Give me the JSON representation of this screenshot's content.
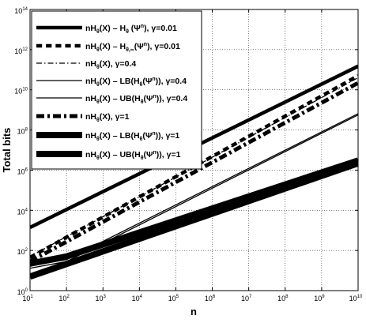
{
  "chart_data": {
    "type": "line",
    "xlabel": "n",
    "ylabel": "Total bits",
    "xscale": "log",
    "yscale": "log",
    "xlim": [
      10,
      10000000000
    ],
    "ylim": [
      1,
      100000000000000
    ],
    "x_ticks": [
      {
        "value": 10,
        "label": "10",
        "exp": "1"
      },
      {
        "value": 100,
        "label": "10",
        "exp": "2"
      },
      {
        "value": 1000,
        "label": "10",
        "exp": "3"
      },
      {
        "value": 10000,
        "label": "10",
        "exp": "4"
      },
      {
        "value": 100000,
        "label": "10",
        "exp": "5"
      },
      {
        "value": 1000000,
        "label": "10",
        "exp": "6"
      },
      {
        "value": 10000000,
        "label": "10",
        "exp": "7"
      },
      {
        "value": 100000000,
        "label": "10",
        "exp": "8"
      },
      {
        "value": 1000000000,
        "label": "10",
        "exp": "9"
      },
      {
        "value": 10000000000,
        "label": "10",
        "exp": "10"
      }
    ],
    "y_ticks": [
      {
        "value": 1,
        "label": "10",
        "exp": "0"
      },
      {
        "value": 100,
        "label": "10",
        "exp": "2"
      },
      {
        "value": 10000,
        "label": "10",
        "exp": "4"
      },
      {
        "value": 1000000,
        "label": "10",
        "exp": "6"
      },
      {
        "value": 100000000,
        "label": "10",
        "exp": "8"
      },
      {
        "value": 10000000000,
        "label": "10",
        "exp": "10"
      },
      {
        "value": 1000000000000,
        "label": "10",
        "exp": "12"
      },
      {
        "value": 100000000000000,
        "label": "10",
        "exp": "14"
      }
    ],
    "legend": {
      "placement": "top-left"
    },
    "series": [
      {
        "id": "s1",
        "legend_label": "nH_θ(X) − H_θ(Ψ^n), γ=0.01",
        "style": "solid",
        "width": 4.5,
        "x": [
          10,
          10000000000
        ],
        "y": [
          1400,
          150000000000
        ]
      },
      {
        "id": "s2",
        "legend_label": "nH_θ(X) − H_θ,∞(Ψ^n), γ=0.01",
        "style": "dashed",
        "width": 4.5,
        "x": [
          10,
          10000000000
        ],
        "y": [
          45,
          50000000000
        ]
      },
      {
        "id": "s3",
        "legend_label": "nH_θ(X), γ=0.4",
        "style": "dashdot",
        "width": 1.3,
        "x": [
          10,
          10000000000
        ],
        "y": [
          50,
          40000000000
        ]
      },
      {
        "id": "s4",
        "legend_label": "nH_θ(X) − LB(H_θ(Ψ^n)), γ=0.4",
        "style": "solid",
        "width": 1.3,
        "x": [
          10,
          100,
          10000000000
        ],
        "y": [
          13,
          28,
          560000000
        ]
      },
      {
        "id": "s5",
        "legend_label": "nH_θ(X) − UB(H_θ(Ψ^n)), γ=0.4",
        "style": "solid",
        "width": 1.3,
        "x": [
          10,
          100,
          10000000000
        ],
        "y": [
          17,
          35,
          650000000
        ]
      },
      {
        "id": "s6",
        "legend_label": "nH_θ(X), γ=1",
        "style": "dashdot",
        "width": 5,
        "x": [
          10,
          10000000000
        ],
        "y": [
          28,
          22000000000
        ]
      },
      {
        "id": "s7",
        "legend_label": "nH_θ(X) − LB(H_θ(Ψ^n)), γ=1",
        "style": "solid",
        "width": 8,
        "x": [
          10,
          10000000000
        ],
        "y": [
          5,
          2200000
        ]
      },
      {
        "id": "s8",
        "legend_label": "nH_θ(X) − UB(H_θ(Ψ^n)), γ=1",
        "style": "solid",
        "width": 8,
        "x": [
          10,
          100,
          10000000000
        ],
        "y": [
          22,
          50,
          3000000
        ]
      }
    ]
  }
}
